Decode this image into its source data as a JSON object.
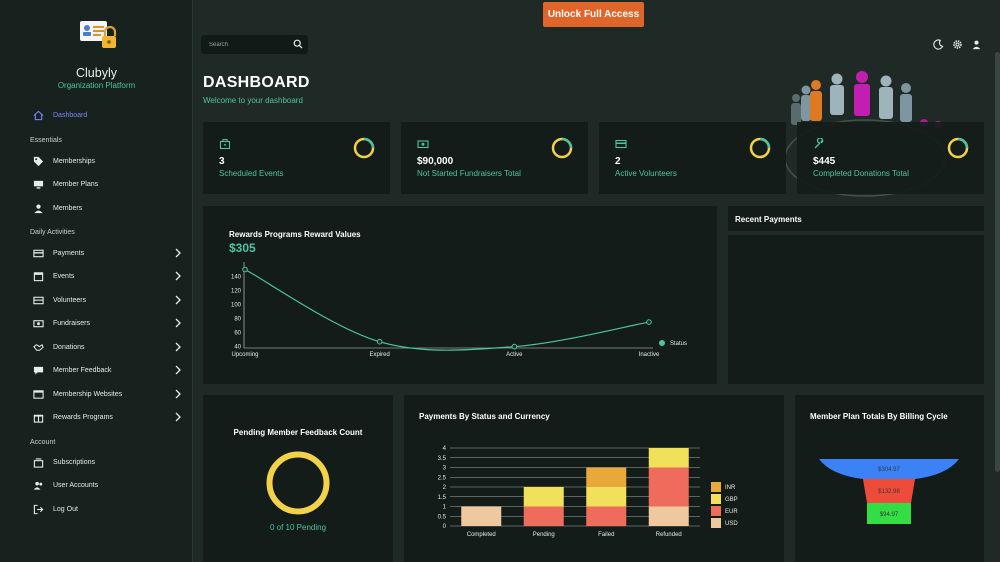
{
  "app": {
    "brand": "Clubyly",
    "brand_sub": "Organization Platform",
    "unlock_label": "Unlock Full Access",
    "search_placeholder": "Search"
  },
  "sidebar": {
    "dashboard": "Dashboard",
    "essentials_label": "Essentials",
    "essentials": [
      "Memberships",
      "Member Plans",
      "Members"
    ],
    "daily_label": "Daily Activities",
    "daily": [
      "Payments",
      "Events",
      "Volunteers",
      "Fundraisers",
      "Donations",
      "Member Feedback",
      "Membership Websites",
      "Rewards Programs"
    ],
    "account_label": "Account",
    "account": [
      "Subscriptions",
      "User Accounts",
      "Log Out"
    ]
  },
  "header": {
    "title": "DASHBOARD",
    "subtitle": "Welcome to your dashboard"
  },
  "stats": [
    {
      "value": "3",
      "label": "Scheduled Events",
      "icon": "briefcase-icon"
    },
    {
      "value": "$90,000",
      "label": "Not Started Fundraisers Total",
      "icon": "money-icon"
    },
    {
      "value": "2",
      "label": "Active Volunteers",
      "icon": "card-icon"
    },
    {
      "value": "$445",
      "label": "Completed Donations Total",
      "icon": "wrench-icon"
    }
  ],
  "rewards": {
    "title": "Rewards Programs Reward Values",
    "value": "$305",
    "legend": "Status"
  },
  "recent_payments": {
    "title": "Recent Payments"
  },
  "pending_feedback": {
    "title": "Pending Member Feedback Count",
    "note": "0 of 10 Pending",
    "pending": 0,
    "total": 10
  },
  "payments_status": {
    "title": "Payments By Status and Currency"
  },
  "member_plans": {
    "title": "Member Plan Totals By Billing Cycle"
  },
  "colors": {
    "accent": "#4fc3a1",
    "ring": "#f2d24a",
    "unlock": "#e0652a"
  },
  "chart_data": [
    {
      "type": "line",
      "title": "Rewards Programs Reward Values",
      "categories": [
        "Upcoming",
        "Expired",
        "Active",
        "Inactive"
      ],
      "series": [
        {
          "name": "Status",
          "values": [
            150,
            47,
            40,
            75
          ]
        }
      ],
      "yticks": [
        40,
        60,
        80,
        100,
        120,
        140
      ],
      "ylim": [
        38,
        155
      ],
      "legend": "right"
    },
    {
      "type": "bar",
      "stacked": true,
      "title": "Payments By Status and Currency",
      "categories": [
        "Completed",
        "Pending",
        "Failed",
        "Refunded"
      ],
      "series": [
        {
          "name": "USD",
          "color": "#f0c8a0",
          "values": [
            1,
            0,
            0,
            1
          ]
        },
        {
          "name": "EUR",
          "color": "#ef6b5b",
          "values": [
            0,
            1,
            1,
            2
          ]
        },
        {
          "name": "GBP",
          "color": "#f0e05a",
          "values": [
            0,
            1,
            1,
            1
          ]
        },
        {
          "name": "INR",
          "color": "#e8a93a",
          "values": [
            0,
            0,
            1,
            0
          ]
        }
      ],
      "yticks": [
        "0",
        "0.5",
        "1",
        "1.5",
        "2",
        "2.5",
        "3",
        "3.5",
        "4"
      ],
      "ylim": [
        0,
        4
      ],
      "legend": "right"
    },
    {
      "type": "funnel",
      "title": "Member Plan Totals By Billing Cycle",
      "values": [
        "$304.97",
        "$132.98",
        "$94.97"
      ],
      "colors": [
        "#3b82f6",
        "#ef4b3a",
        "#33dd44"
      ]
    }
  ]
}
